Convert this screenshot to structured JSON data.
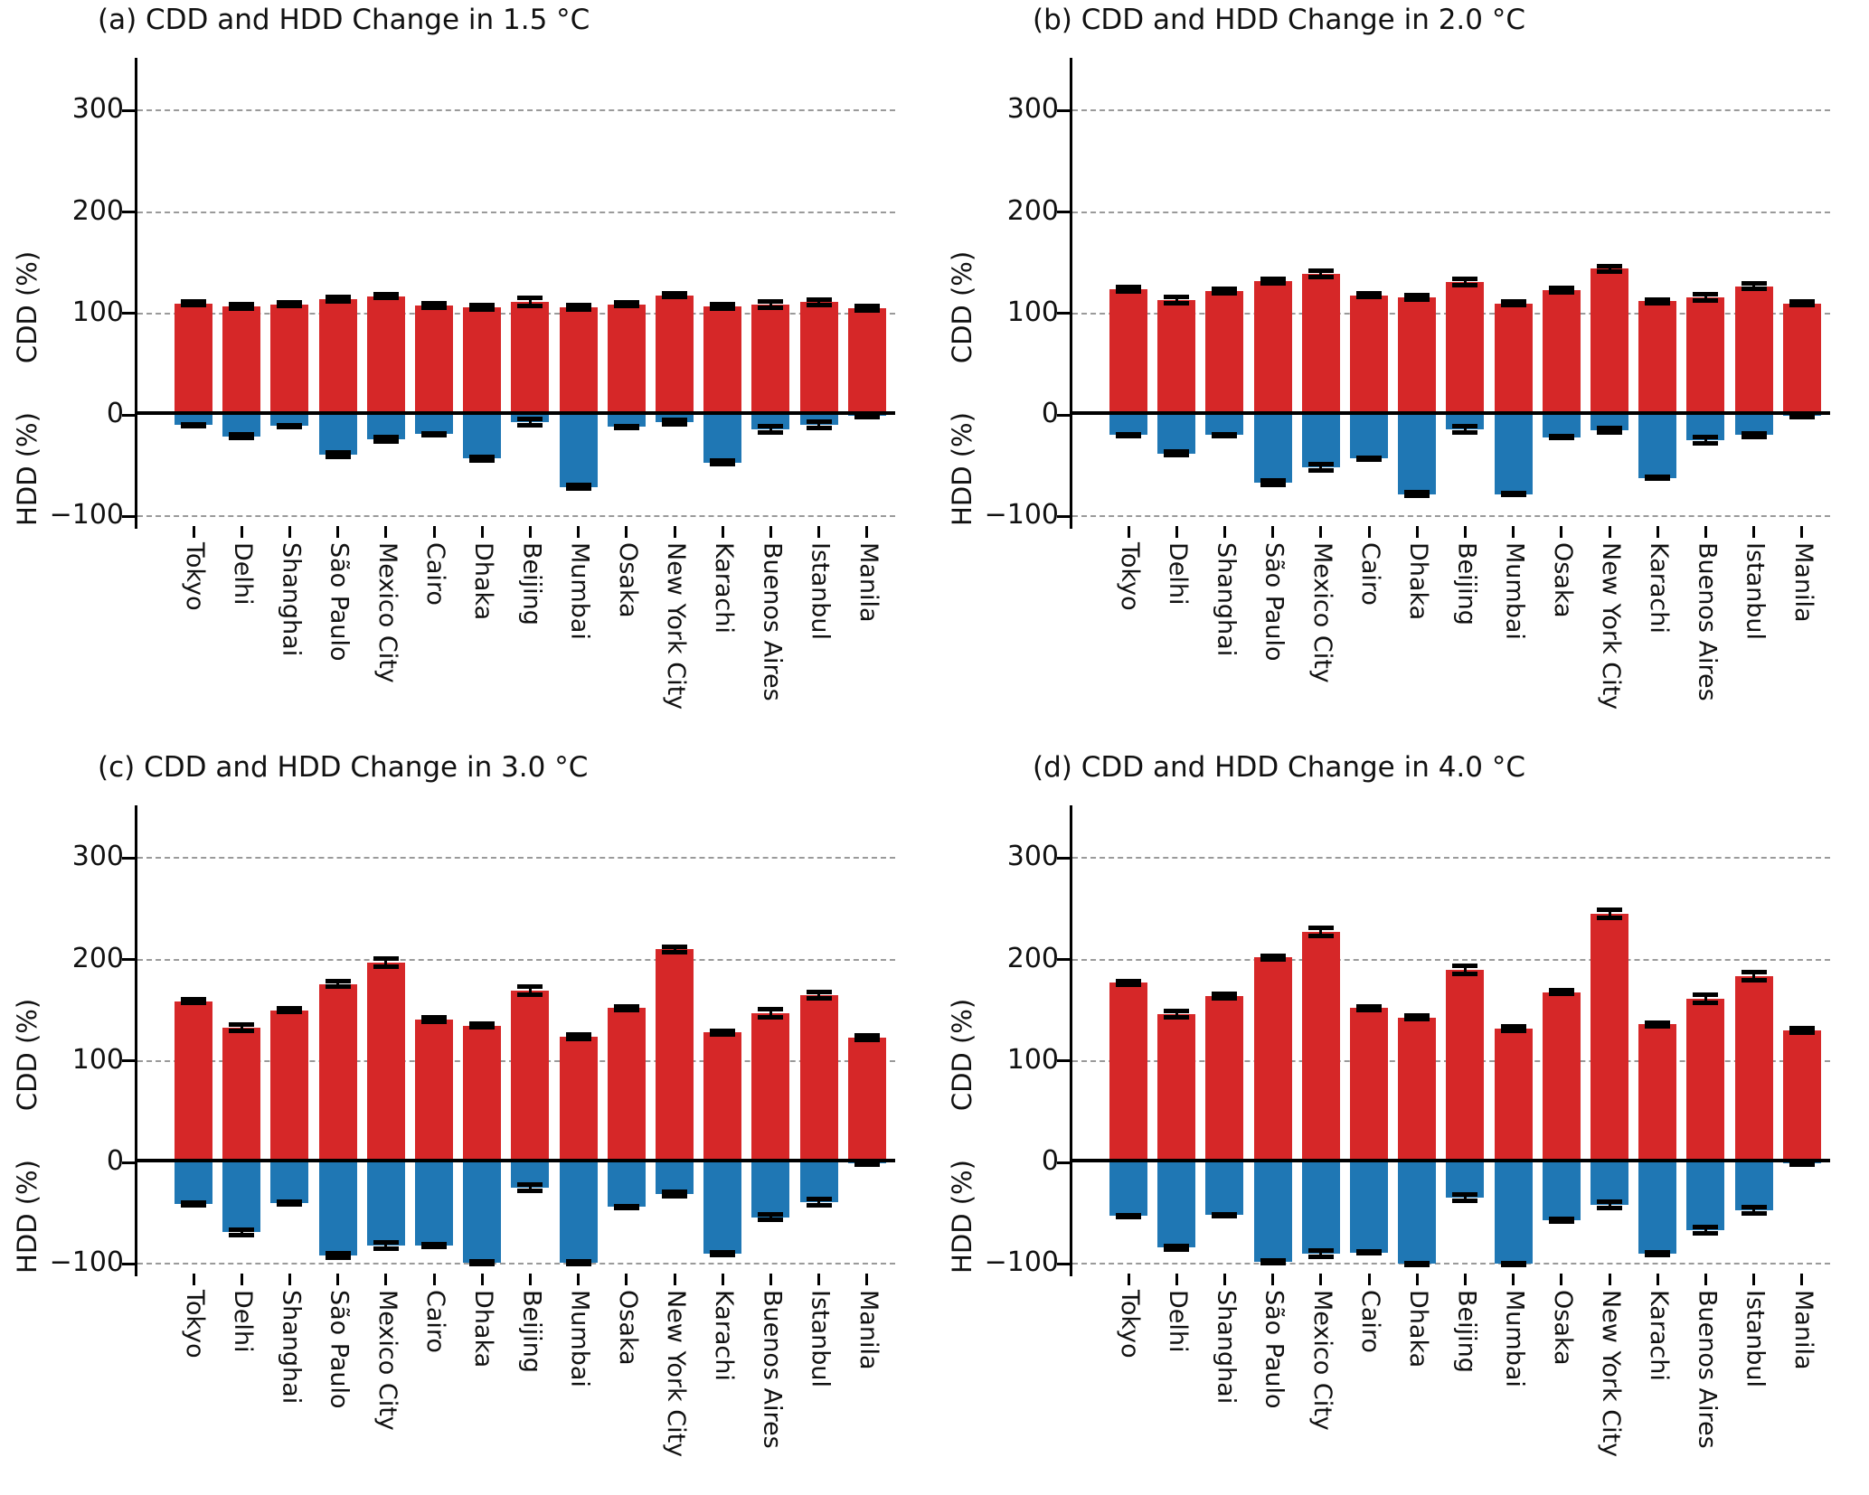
{
  "figure": {
    "background": "#ffffff",
    "cdd_color": "#d62728",
    "hdd_color": "#1f77b4",
    "errorbar_color": "#000000",
    "ylabel_top": "CDD (%)",
    "ylabel_bottom": "HDD (%)",
    "ytick_labels": [
      "300",
      "200",
      "100",
      "0",
      "−100"
    ],
    "ytick_values": [
      300,
      200,
      100,
      0,
      -100
    ],
    "cities": [
      "Tokyo",
      "Delhi",
      "Shanghai",
      "São Paulo",
      "Mexico City",
      "Cairo",
      "Dhaka",
      "Beijing",
      "Mumbai",
      "Osaka",
      "New York City",
      "Karachi",
      "Buenos Aires",
      "Istanbul",
      "Manila"
    ]
  },
  "chart_data": [
    {
      "type": "bar",
      "panel": "a",
      "title": "(a) CDD and HDD Change in 1.5 °C",
      "xlabel": "",
      "ylabel": "CDD (%) / HDD (%)",
      "ylim": [
        -110,
        355
      ],
      "grid": true,
      "categories": [
        "Tokyo",
        "Delhi",
        "Shanghai",
        "São Paulo",
        "Mexico City",
        "Cairo",
        "Dhaka",
        "Beijing",
        "Mumbai",
        "Osaka",
        "New York City",
        "Karachi",
        "Buenos Aires",
        "Istanbul",
        "Manila"
      ],
      "series": [
        {
          "name": "CDD change (%)",
          "color": "#d62728",
          "values": [
            110,
            107,
            109,
            114,
            117,
            108,
            106,
            111,
            106,
            109,
            118,
            107,
            109,
            111,
            105
          ],
          "errors": [
            2,
            2,
            2,
            2,
            2,
            2,
            2,
            4,
            2,
            2,
            2,
            2,
            3,
            3,
            2
          ]
        },
        {
          "name": "HDD change (%)",
          "color": "#1f77b4",
          "values": [
            -10,
            -21,
            -11,
            -39,
            -24,
            -19,
            -43,
            -7,
            -71,
            -12,
            -7,
            -47,
            -14,
            -10,
            -1
          ],
          "errors": [
            1,
            2,
            1,
            2,
            2,
            1,
            2,
            3,
            2,
            1,
            2,
            2,
            3,
            3,
            1
          ]
        }
      ]
    },
    {
      "type": "bar",
      "panel": "b",
      "title": "(b) CDD and HDD Change in 2.0 °C",
      "xlabel": "",
      "ylabel": "CDD (%) / HDD (%)",
      "ylim": [
        -110,
        355
      ],
      "grid": true,
      "categories": [
        "Tokyo",
        "Delhi",
        "Shanghai",
        "São Paulo",
        "Mexico City",
        "Cairo",
        "Dhaka",
        "Beijing",
        "Mumbai",
        "Osaka",
        "New York City",
        "Karachi",
        "Buenos Aires",
        "Istanbul",
        "Manila"
      ],
      "series": [
        {
          "name": "CDD change (%)",
          "color": "#d62728",
          "values": [
            124,
            113,
            122,
            132,
            139,
            118,
            116,
            131,
            110,
            123,
            144,
            112,
            116,
            127,
            110
          ],
          "errors": [
            2,
            3,
            2,
            2,
            3,
            2,
            2,
            3,
            2,
            2,
            3,
            2,
            3,
            3,
            2
          ]
        },
        {
          "name": "HDD change (%)",
          "color": "#1f77b4",
          "values": [
            -20,
            -38,
            -20,
            -67,
            -52,
            -43,
            -78,
            -14,
            -78,
            -22,
            -15,
            -62,
            -25,
            -20,
            -1
          ],
          "errors": [
            1,
            2,
            1,
            2,
            3,
            1,
            2,
            3,
            1,
            1,
            2,
            1,
            3,
            2,
            1
          ]
        }
      ]
    },
    {
      "type": "bar",
      "panel": "c",
      "title": "(c) CDD and HDD Change in 3.0 °C",
      "xlabel": "",
      "ylabel": "CDD (%) / HDD (%)",
      "ylim": [
        -110,
        355
      ],
      "grid": true,
      "categories": [
        "Tokyo",
        "Delhi",
        "Shanghai",
        "São Paulo",
        "Mexico City",
        "Cairo",
        "Dhaka",
        "Beijing",
        "Mumbai",
        "Osaka",
        "New York City",
        "Karachi",
        "Buenos Aires",
        "Istanbul",
        "Manila"
      ],
      "series": [
        {
          "name": "CDD change (%)",
          "color": "#d62728",
          "values": [
            159,
            133,
            150,
            176,
            197,
            141,
            135,
            169,
            124,
            152,
            210,
            128,
            147,
            165,
            123
          ],
          "errors": [
            2,
            3,
            2,
            3,
            4,
            2,
            2,
            4,
            2,
            2,
            3,
            2,
            4,
            3,
            2
          ]
        },
        {
          "name": "HDD change (%)",
          "color": "#1f77b4",
          "values": [
            -41,
            -69,
            -40,
            -92,
            -82,
            -82,
            -99,
            -25,
            -99,
            -44,
            -31,
            -90,
            -54,
            -39,
            -1
          ],
          "errors": [
            1,
            3,
            1,
            2,
            3,
            1,
            1,
            3,
            1,
            1,
            2,
            1,
            3,
            3,
            1
          ]
        }
      ]
    },
    {
      "type": "bar",
      "panel": "d",
      "title": "(d) CDD and HDD Change in 4.0 °C",
      "xlabel": "",
      "ylabel": "CDD (%) / HDD (%)",
      "ylim": [
        -110,
        355
      ],
      "grid": true,
      "categories": [
        "Tokyo",
        "Delhi",
        "Shanghai",
        "São Paulo",
        "Mexico City",
        "Cairo",
        "Dhaka",
        "Beijing",
        "Mumbai",
        "Osaka",
        "New York City",
        "Karachi",
        "Buenos Aires",
        "Istanbul",
        "Manila"
      ],
      "series": [
        {
          "name": "CDD change (%)",
          "color": "#d62728",
          "values": [
            177,
            146,
            164,
            202,
            227,
            152,
            143,
            190,
            132,
            168,
            245,
            136,
            161,
            184,
            130
          ],
          "errors": [
            2,
            3,
            2,
            2,
            4,
            2,
            2,
            4,
            2,
            2,
            4,
            2,
            4,
            4,
            2
          ]
        },
        {
          "name": "HDD change (%)",
          "color": "#1f77b4",
          "values": [
            -53,
            -84,
            -52,
            -98,
            -90,
            -89,
            -100,
            -35,
            -100,
            -57,
            -42,
            -90,
            -67,
            -47,
            -1
          ],
          "errors": [
            1,
            2,
            1,
            1,
            3,
            1,
            1,
            3,
            1,
            1,
            3,
            1,
            3,
            3,
            1
          ]
        }
      ]
    }
  ]
}
